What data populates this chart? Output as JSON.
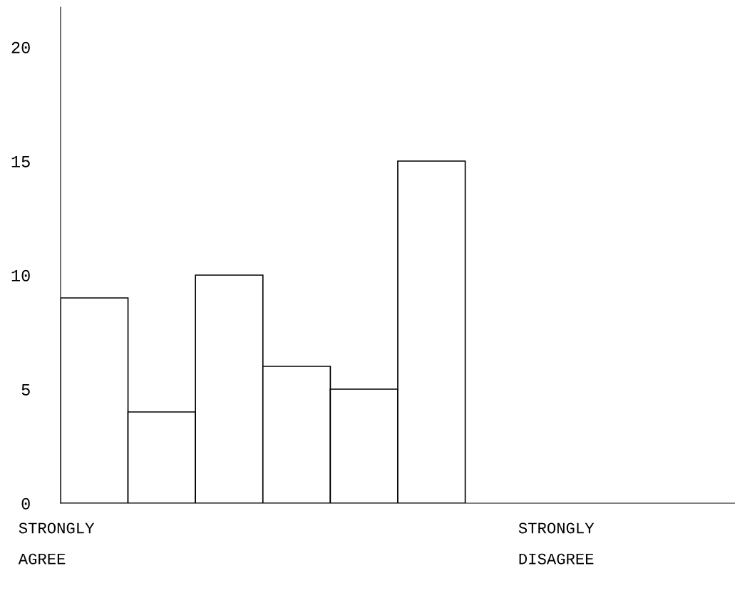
{
  "chart_data": {
    "type": "bar",
    "categories": [
      null,
      null,
      null,
      null,
      null,
      null,
      null,
      null,
      null,
      null
    ],
    "values": [
      9,
      4,
      10,
      6,
      5,
      15,
      0,
      0,
      0,
      0
    ],
    "color": "#ffffff",
    "ylim": [
      0,
      21.75
    ],
    "yticks": [
      0,
      5,
      10,
      15,
      20
    ],
    "grid": false,
    "annotations": [
      "STRONGLY\nAGREE",
      "STRONGLY\nDISAGREE"
    ]
  }
}
